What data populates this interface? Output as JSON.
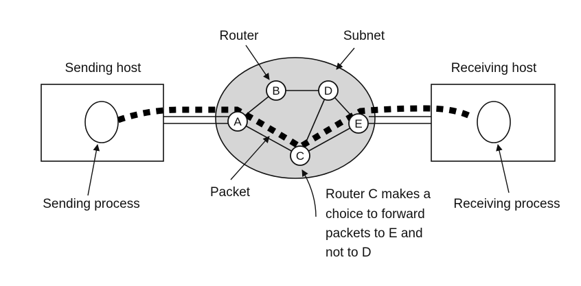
{
  "labels": {
    "sending_host": "Sending host",
    "receiving_host": "Receiving host",
    "router": "Router",
    "subnet": "Subnet",
    "packet": "Packet",
    "sending_process": "Sending process",
    "receiving_process": "Receiving process",
    "router_c_note": [
      "Router C makes a",
      "choice to forward",
      "packets to E and",
      "not to D"
    ]
  },
  "routers": [
    {
      "id": "A",
      "label": "A"
    },
    {
      "id": "B",
      "label": "B"
    },
    {
      "id": "C",
      "label": "C"
    },
    {
      "id": "D",
      "label": "D"
    },
    {
      "id": "E",
      "label": "E"
    }
  ],
  "links": [
    [
      "A",
      "B"
    ],
    [
      "B",
      "D"
    ],
    [
      "A",
      "C"
    ],
    [
      "D",
      "C"
    ],
    [
      "D",
      "E"
    ],
    [
      "C",
      "E"
    ]
  ],
  "colors": {
    "subnet_fill": "#d6d6d6",
    "packet_path": "#000000"
  }
}
